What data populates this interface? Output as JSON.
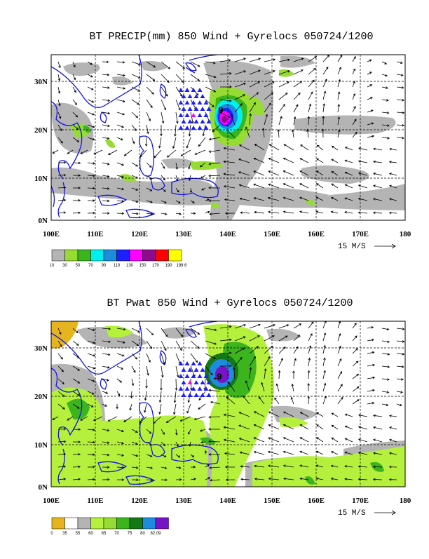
{
  "panels": [
    {
      "title": "BT PRECIP(mm) 850 Wind + Gyrelocs 050724/1200",
      "x_ticks": [
        "100E",
        "110E",
        "120E",
        "130E",
        "140E",
        "150E",
        "160E",
        "170E",
        "180"
      ],
      "y_ticks": [
        "0N",
        "10N",
        "20N",
        "30N"
      ],
      "scale_label": "15 M/S",
      "colorbar": {
        "colors": [
          "#b4b4b4",
          "#96dc32",
          "#3cb41e",
          "#00f0f0",
          "#1e8cdc",
          "#1e1eff",
          "#ff00ff",
          "#8c0a8c",
          "#ff0000",
          "#ffff00"
        ],
        "labels": [
          "10",
          "30",
          "50",
          "70",
          "90",
          "110",
          "130",
          "150",
          "170",
          "190",
          "199.6"
        ]
      },
      "storm_label": "9"
    },
    {
      "title": "BT Pwat 850 Wind + Gyrelocs 050724/1200",
      "x_ticks": [
        "100E",
        "110E",
        "120E",
        "130E",
        "140E",
        "150E",
        "160E",
        "170E",
        "180"
      ],
      "y_ticks": [
        "0N",
        "10N",
        "20N",
        "30N"
      ],
      "scale_label": "15 M/S",
      "colorbar": {
        "colors": [
          "#e6b41e",
          "#ffffff",
          "#b4b4b4",
          "#b4f03c",
          "#96dc32",
          "#3cb41e",
          "#147814",
          "#1e8cdc",
          "#7814c8"
        ],
        "labels": [
          "0",
          "35",
          "55",
          "60",
          "65",
          "70",
          "75",
          "80",
          "82.09"
        ]
      },
      "storm_label": "9"
    }
  ]
}
